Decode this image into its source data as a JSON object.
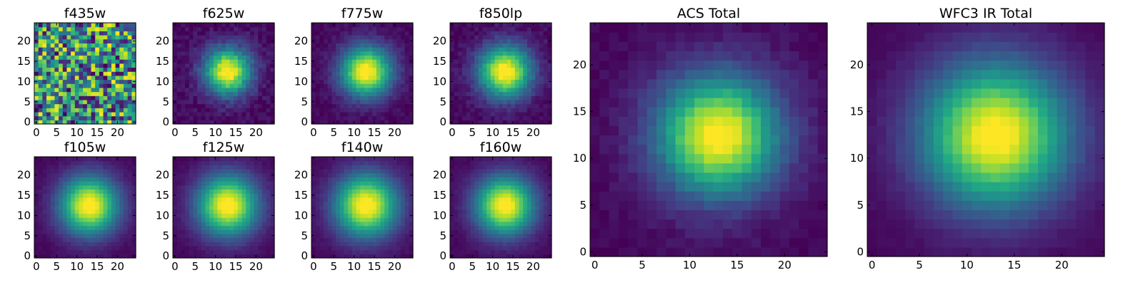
{
  "figure": {
    "background": "#ffffff",
    "colormap": "viridis"
  },
  "chart_data": [
    {
      "type": "heatmap",
      "title": "f435w",
      "pattern": "noise",
      "xticks": [
        0,
        5,
        10,
        15,
        20
      ],
      "yticks": [
        0,
        5,
        10,
        15,
        20
      ],
      "grid_size": [
        25,
        25
      ],
      "center": [
        13,
        12.5
      ],
      "xlim": [
        -0.5,
        24.5
      ],
      "ylim": [
        -0.5,
        24.5
      ]
    },
    {
      "type": "heatmap",
      "title": "f625w",
      "pattern": "psf",
      "xticks": [
        0,
        5,
        10,
        15,
        20
      ],
      "yticks": [
        0,
        5,
        10,
        15,
        20
      ],
      "grid_size": [
        25,
        25
      ],
      "center": [
        13,
        12.5
      ],
      "width": 4.0,
      "noise": 0.06,
      "xlim": [
        -0.5,
        24.5
      ],
      "ylim": [
        -0.5,
        24.5
      ]
    },
    {
      "type": "heatmap",
      "title": "f775w",
      "pattern": "psf",
      "xticks": [
        0,
        5,
        10,
        15,
        20
      ],
      "yticks": [
        0,
        5,
        10,
        15,
        20
      ],
      "grid_size": [
        25,
        25
      ],
      "center": [
        13,
        12.5
      ],
      "width": 4.3,
      "noise": 0.04,
      "xlim": [
        -0.5,
        24.5
      ],
      "ylim": [
        -0.5,
        24.5
      ]
    },
    {
      "type": "heatmap",
      "title": "f850lp",
      "pattern": "psf",
      "xticks": [
        0,
        5,
        10,
        15,
        20
      ],
      "yticks": [
        0,
        5,
        10,
        15,
        20
      ],
      "grid_size": [
        25,
        25
      ],
      "center": [
        13,
        12.5
      ],
      "width": 4.5,
      "noise": 0.05,
      "xlim": [
        -0.5,
        24.5
      ],
      "ylim": [
        -0.5,
        24.5
      ]
    },
    {
      "type": "heatmap",
      "title": "f105w",
      "pattern": "psf",
      "xticks": [
        0,
        5,
        10,
        15,
        20
      ],
      "yticks": [
        0,
        5,
        10,
        15,
        20
      ],
      "grid_size": [
        25,
        25
      ],
      "center": [
        13,
        12.5
      ],
      "width": 5.0,
      "noise": 0.02,
      "xlim": [
        -0.5,
        24.5
      ],
      "ylim": [
        -0.5,
        24.5
      ]
    },
    {
      "type": "heatmap",
      "title": "f125w",
      "pattern": "psf",
      "xticks": [
        0,
        5,
        10,
        15,
        20
      ],
      "yticks": [
        0,
        5,
        10,
        15,
        20
      ],
      "grid_size": [
        25,
        25
      ],
      "center": [
        13,
        12.5
      ],
      "width": 5.2,
      "noise": 0.02,
      "xlim": [
        -0.5,
        24.5
      ],
      "ylim": [
        -0.5,
        24.5
      ]
    },
    {
      "type": "heatmap",
      "title": "f140w",
      "pattern": "psf",
      "xticks": [
        0,
        5,
        10,
        15,
        20
      ],
      "yticks": [
        0,
        5,
        10,
        15,
        20
      ],
      "grid_size": [
        25,
        25
      ],
      "center": [
        13,
        12.5
      ],
      "width": 5.4,
      "noise": 0.02,
      "xlim": [
        -0.5,
        24.5
      ],
      "ylim": [
        -0.5,
        24.5
      ]
    },
    {
      "type": "heatmap",
      "title": "f160w",
      "pattern": "psf",
      "xticks": [
        0,
        5,
        10,
        15,
        20
      ],
      "yticks": [
        0,
        5,
        10,
        15,
        20
      ],
      "grid_size": [
        25,
        25
      ],
      "center": [
        13,
        12.5
      ],
      "width": 5.0,
      "noise": 0.02,
      "xlim": [
        -0.5,
        24.5
      ],
      "ylim": [
        -0.5,
        24.5
      ]
    },
    {
      "type": "heatmap",
      "title": "ACS Total",
      "pattern": "psf",
      "xticks": [
        0,
        5,
        10,
        15,
        20
      ],
      "yticks": [
        0,
        5,
        10,
        15,
        20
      ],
      "grid_size": [
        25,
        25
      ],
      "center": [
        13,
        12.5
      ],
      "width": 4.4,
      "noise": 0.03,
      "xlim": [
        -0.5,
        24.5
      ],
      "ylim": [
        -0.5,
        24.5
      ]
    },
    {
      "type": "heatmap",
      "title": "WFC3 IR Total",
      "pattern": "psf",
      "xticks": [
        0,
        5,
        10,
        15,
        20
      ],
      "yticks": [
        0,
        5,
        10,
        15,
        20
      ],
      "grid_size": [
        25,
        25
      ],
      "center": [
        13,
        12.5
      ],
      "width": 5.3,
      "noise": 0.015,
      "xlim": [
        -0.5,
        24.5
      ],
      "ylim": [
        -0.5,
        24.5
      ]
    }
  ]
}
